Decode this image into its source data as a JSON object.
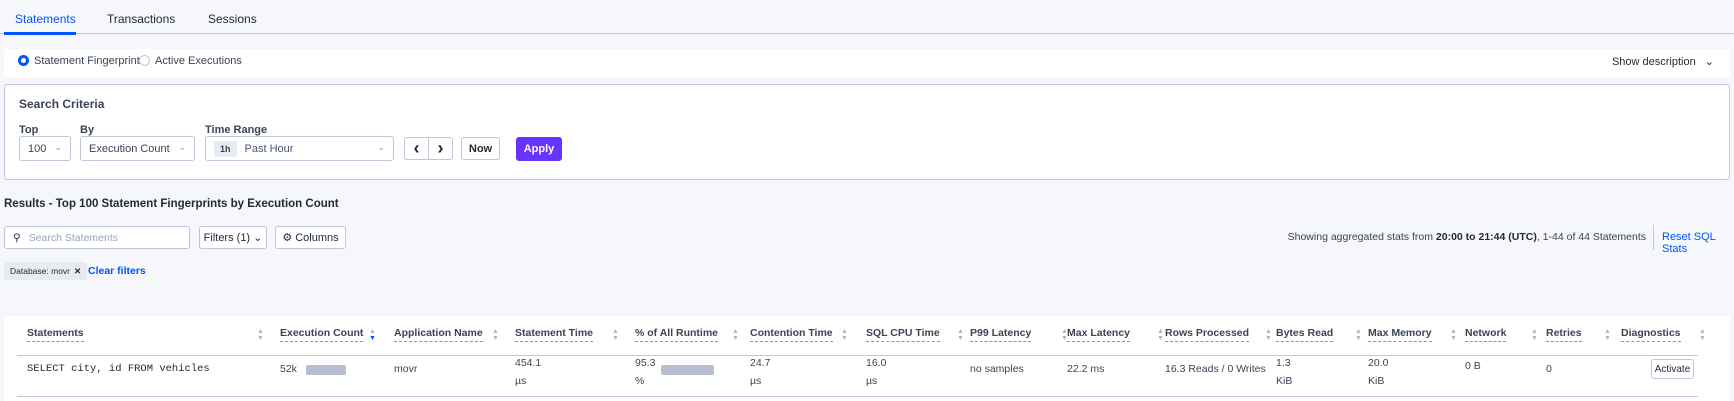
{
  "tabs": [
    {
      "label": "Statements",
      "active": true
    },
    {
      "label": "Transactions"
    },
    {
      "label": "Sessions"
    }
  ],
  "view": {
    "options": [
      "Statement Fingerprints",
      "Active Executions"
    ],
    "selected": "Statement Fingerprints",
    "show_description": "Show description"
  },
  "search": {
    "title": "Search Criteria",
    "top_label": "Top",
    "top_value": "100",
    "by_label": "By",
    "by_value": "Execution Count",
    "time_label": "Time Range",
    "time_badge": "1h",
    "time_value": "Past Hour",
    "prev": "‹",
    "next": "›",
    "now": "Now",
    "apply": "Apply"
  },
  "results": {
    "title": "Results - Top 100 Statement Fingerprints by Execution Count",
    "search_placeholder": "Search Statements",
    "filters": "Filters (1)",
    "columns": "Columns",
    "status_prefix": "Showing aggregated stats from ",
    "status_range": "20:00 to 21:44 (UTC)",
    "status_suffix": ", 1-44 of 44 Statements",
    "reset": "Reset SQL Stats",
    "chip": "Database: movr",
    "clear": "Clear filters"
  },
  "table": {
    "columns": [
      "Statements",
      "Execution Count",
      "Application Name",
      "Statement Time",
      "% of All Runtime",
      "Contention Time",
      "SQL CPU Time",
      "P99 Latency",
      "Max Latency",
      "Rows Processed",
      "Bytes Read",
      "Max Memory",
      "Network",
      "Retries",
      "Diagnostics"
    ],
    "sorted_column": "Execution Count",
    "rows": [
      {
        "statement": "SELECT city, id FROM vehicles",
        "exec_count": "52k",
        "exec_fraction": 1.0,
        "app": "movr",
        "stmt_time": "454.1",
        "stmt_time_unit": "µs",
        "pct_runtime": "95.3",
        "pct_unit": "%",
        "pct_fraction": 0.953,
        "contention": "24.7",
        "contention_unit": "µs",
        "cpu": "16.0",
        "cpu_unit": "µs",
        "p99": "no samples",
        "max_latency": "22.2 ms",
        "rows": "16.3 Reads / 0 Writes",
        "bytes": "1.3",
        "bytes_unit": "KiB",
        "mem": "20.0",
        "mem_unit": "KiB",
        "network": "0 B",
        "retries": "0",
        "diagnostics": "Activate"
      }
    ]
  },
  "colors": {
    "accent": "#0055ff",
    "apply": "#6933ff",
    "bar": "#b9bfd3"
  }
}
